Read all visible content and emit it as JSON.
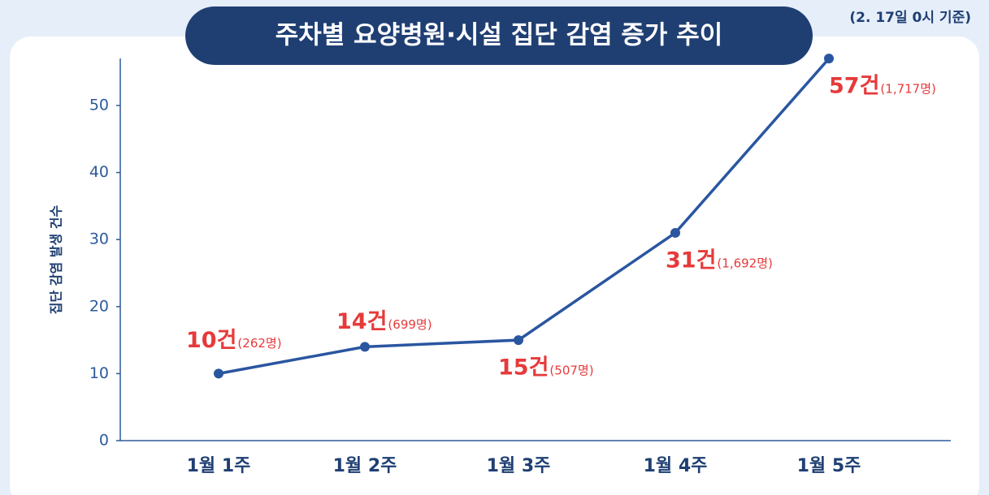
{
  "chart_data": {
    "type": "line",
    "title": "주차별 요양병원·시설 집단 감염 증가 추이",
    "subtitle": "(2. 17일 0시 기준)",
    "ylabel": "집단 감염 발생 건수",
    "categories": [
      "1월 1주",
      "1월 2주",
      "1월 3주",
      "1월 4주",
      "1월 5주"
    ],
    "series": [
      {
        "name": "집단 감염 발생 건수",
        "color": "#2a56a0",
        "values": [
          10,
          14,
          15,
          31,
          57
        ],
        "value_labels": [
          "10건",
          "14건",
          "15건",
          "31건",
          "57건"
        ]
      }
    ],
    "patients": [
      262,
      699,
      507,
      1692,
      1717
    ],
    "patient_labels": [
      "(262명)",
      "(699명)",
      "(507명)",
      "(1,692명)",
      "(1,717명)"
    ],
    "ylim": [
      0,
      57
    ],
    "yticks": [
      0,
      10,
      20,
      30,
      40,
      50
    ],
    "grid": false
  }
}
